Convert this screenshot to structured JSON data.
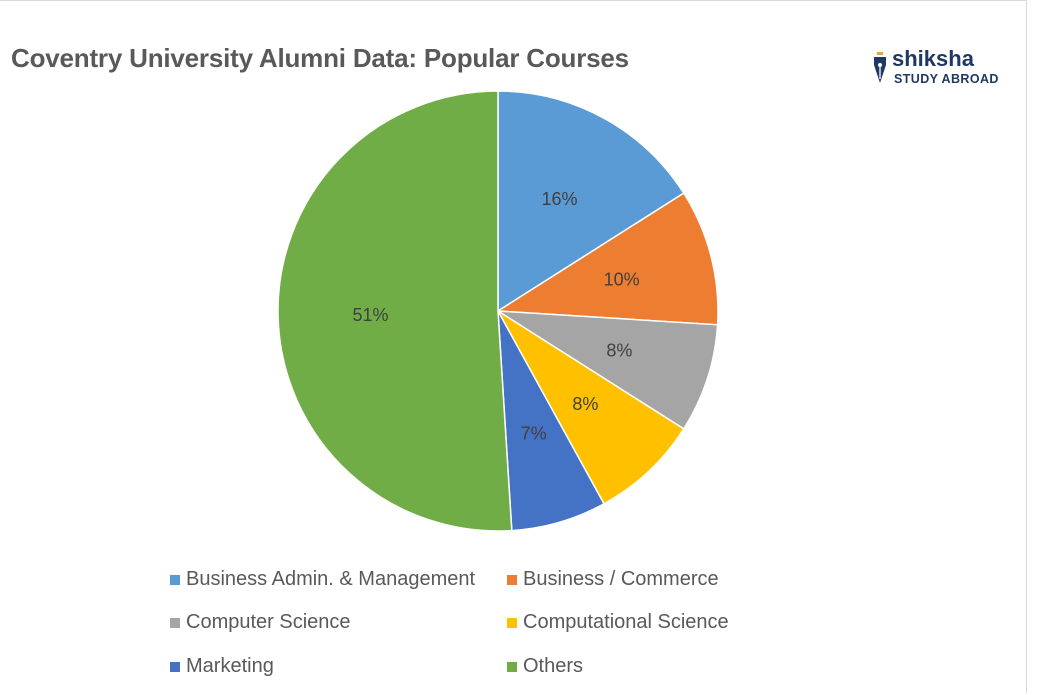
{
  "title": "Coventry University Alumni Data: Popular Courses",
  "logo": {
    "brand": "shiksha",
    "subtitle": "STUDY ABROAD"
  },
  "chart_data": {
    "type": "pie",
    "title": "Coventry University Alumni Data: Popular Courses",
    "categories": [
      "Business Admin. & Management",
      "Business / Commerce",
      "Computer Science",
      "Computational Science",
      "Marketing",
      "Others"
    ],
    "values": [
      16,
      10,
      8,
      8,
      7,
      51
    ],
    "labels": [
      "16%",
      "10%",
      "8%",
      "8%",
      "7%",
      "51%"
    ],
    "colors": [
      "#5b9bd5",
      "#ed7d31",
      "#a5a5a5",
      "#ffc000",
      "#4472c4",
      "#70ad47"
    ],
    "legend_position": "bottom"
  }
}
